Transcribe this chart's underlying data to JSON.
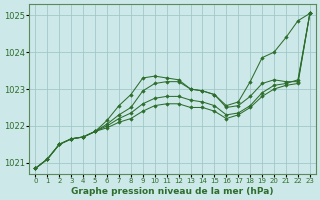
{
  "title": "Graphe pression niveau de la mer (hPa)",
  "bg_color": "#cde8e8",
  "grid_color": "#a0c8c8",
  "line_color": "#2d6e2d",
  "marker_color": "#2d6e2d",
  "ylim": [
    1020.7,
    1025.3
  ],
  "xlim": [
    -0.5,
    23.5
  ],
  "yticks": [
    1021,
    1022,
    1023,
    1024,
    1025
  ],
  "xticks": [
    0,
    1,
    2,
    3,
    4,
    5,
    6,
    7,
    8,
    9,
    10,
    11,
    12,
    13,
    14,
    15,
    16,
    17,
    18,
    19,
    20,
    21,
    22,
    23
  ],
  "series": [
    [
      1020.85,
      1021.1,
      1021.5,
      1021.65,
      1021.7,
      1021.85,
      1022.15,
      1022.55,
      1022.85,
      1023.3,
      1023.35,
      1023.3,
      1023.25,
      1023.0,
      1022.95,
      1022.85,
      1022.55,
      1022.65,
      1023.2,
      1023.85,
      1024.0,
      1024.4,
      1024.85,
      1025.05
    ],
    [
      1020.85,
      1021.1,
      1021.5,
      1021.65,
      1021.7,
      1021.85,
      1021.95,
      1022.1,
      1022.2,
      1022.4,
      1022.55,
      1022.6,
      1022.6,
      1022.5,
      1022.5,
      1022.4,
      1022.2,
      1022.3,
      1022.5,
      1022.8,
      1023.0,
      1023.1,
      1023.15,
      1025.05
    ],
    [
      1020.85,
      1021.1,
      1021.5,
      1021.65,
      1021.7,
      1021.85,
      1022.0,
      1022.2,
      1022.35,
      1022.6,
      1022.75,
      1022.8,
      1022.8,
      1022.7,
      1022.65,
      1022.55,
      1022.3,
      1022.35,
      1022.55,
      1022.9,
      1023.1,
      1023.15,
      1023.25,
      1025.05
    ],
    [
      1020.85,
      1021.1,
      1021.5,
      1021.65,
      1021.7,
      1021.85,
      1022.05,
      1022.3,
      1022.5,
      1022.95,
      1023.15,
      1023.2,
      1023.2,
      1023.0,
      1022.95,
      1022.85,
      1022.5,
      1022.55,
      1022.8,
      1023.15,
      1023.25,
      1023.2,
      1023.2,
      1025.05
    ]
  ]
}
